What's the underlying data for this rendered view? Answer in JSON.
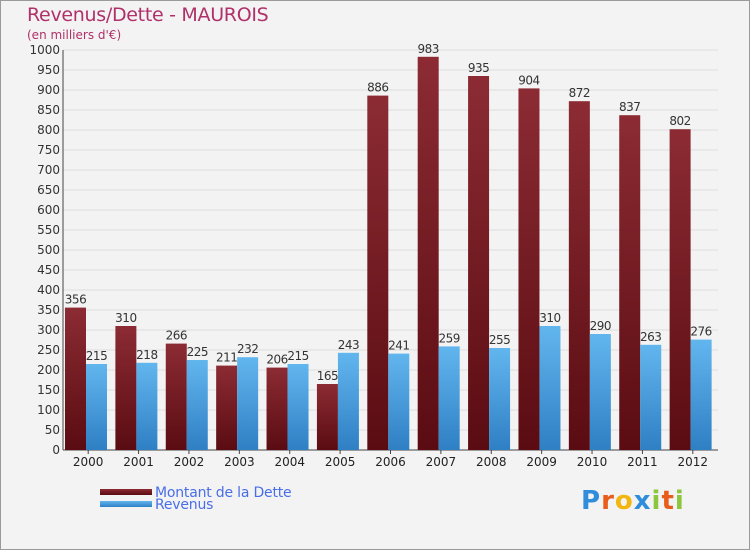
{
  "header": {
    "title": "Revenus/Dette - MAUROIS",
    "subtitle": "(en milliers d'€)"
  },
  "logo": {
    "text": "Proxiti",
    "letters": [
      "P",
      "r",
      "o",
      "x",
      "i",
      "t",
      "i"
    ],
    "colors": [
      "#2f8ddb",
      "#e85d1c",
      "#f2b60f",
      "#2f8ddb",
      "#8cc63f",
      "#e85d1c",
      "#8cc63f"
    ]
  },
  "colors": {
    "debt_top": "#8c2b33",
    "debt_bottom": "#5a0c12",
    "revenue_top": "#62b6ee",
    "revenue_bottom": "#2f7fc4",
    "title": "#b0306a",
    "legend_text": "#4a6ee8",
    "grid": "#dcdcdc",
    "axis": "#444444"
  },
  "chart_data": {
    "type": "bar",
    "title": "Revenus/Dette - MAUROIS",
    "ylabel": "(en milliers d'€)",
    "xlabel": "",
    "ylim": [
      0,
      1000
    ],
    "ytick_step": 50,
    "grid": true,
    "legend_position": "bottom-left",
    "categories": [
      "2000",
      "2001",
      "2002",
      "2003",
      "2004",
      "2005",
      "2006",
      "2007",
      "2008",
      "2009",
      "2010",
      "2011",
      "2012"
    ],
    "series": [
      {
        "name": "Montant de la Dette",
        "values": [
          356,
          310,
          266,
          211,
          206,
          165,
          886,
          983,
          935,
          904,
          872,
          837,
          802
        ]
      },
      {
        "name": "Revenus",
        "values": [
          215,
          218,
          225,
          232,
          215,
          243,
          241,
          259,
          255,
          310,
          290,
          263,
          276
        ]
      }
    ]
  }
}
